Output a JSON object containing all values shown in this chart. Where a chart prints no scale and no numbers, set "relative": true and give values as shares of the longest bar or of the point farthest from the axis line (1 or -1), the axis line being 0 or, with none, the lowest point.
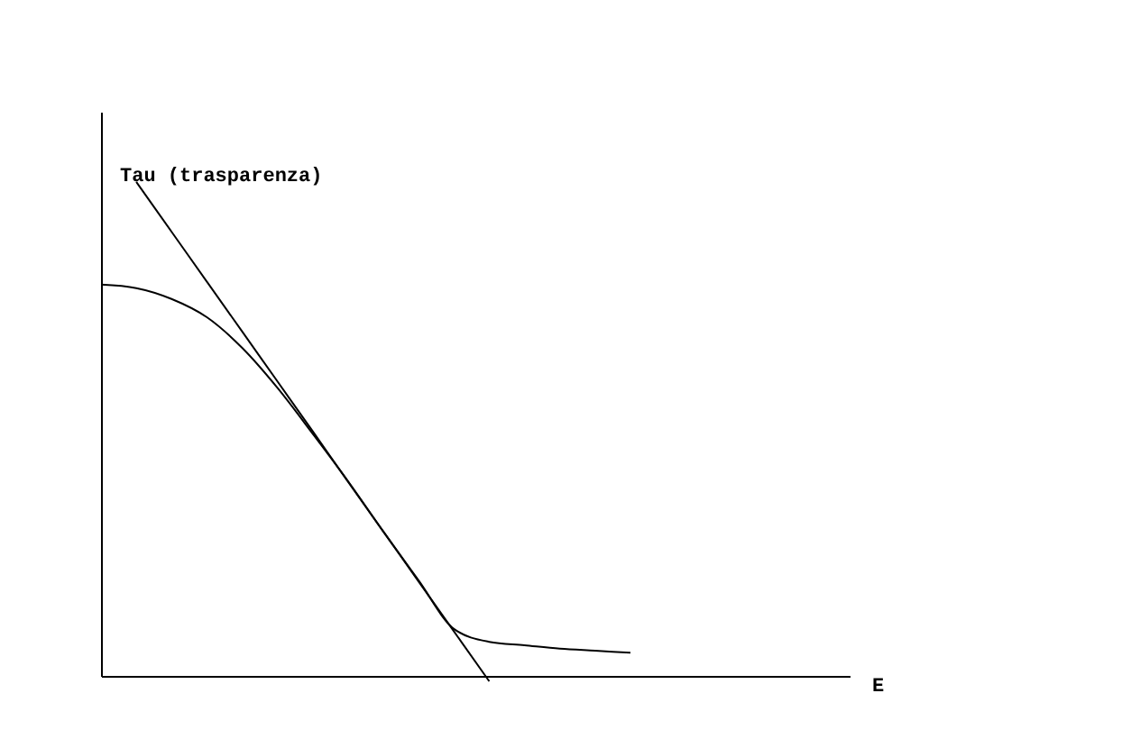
{
  "chart_data": {
    "type": "line",
    "relative": true,
    "xlabel": "E",
    "ylabel": "Tau (trasparenza)",
    "marker": "none",
    "line_style": "solid",
    "categories": [
      null,
      null,
      null,
      null,
      null,
      null,
      null,
      null,
      null,
      null,
      null,
      null,
      null,
      null,
      null,
      null,
      null,
      null,
      null,
      null,
      null,
      null
    ],
    "series": [
      {
        "color": "#000000",
        "values": [
          0.792,
          0.785,
          0.763,
          0.726,
          0.664,
          0.583,
          0.49,
          0.394,
          0.292,
          0.193,
          0.095,
          0.069,
          0.062,
          0.055,
          0.051,
          0.047,
          null,
          null,
          null,
          null,
          null,
          null
        ]
      },
      {
        "color": "#000000",
        "values": [
          null,
          1.0,
          0.899,
          0.798,
          0.697,
          0.596,
          0.495,
          0.393,
          0.292,
          0.191,
          0.09,
          -0.011,
          null,
          null,
          null,
          null,
          null,
          null,
          null,
          null,
          null,
          null
        ]
      }
    ]
  }
}
